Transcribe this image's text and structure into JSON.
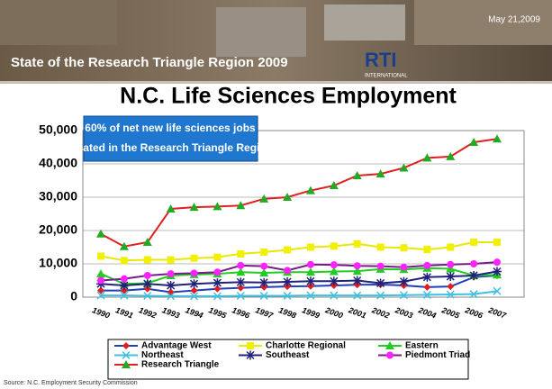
{
  "header": {
    "subtitle": "State of the Research Triangle Region 2009",
    "date": "May 21,2009",
    "logo": "RTI",
    "logo_sub": "INTERNATIONAL"
  },
  "source": "Source: N.C. Employment Security Commission",
  "chart_data": {
    "type": "line",
    "title": "N.C. Life Sciences Employment",
    "annotation": [
      "60% of net new life sciences jobs",
      "located in the Research Triangle Region"
    ],
    "categories": [
      "1990",
      "1991",
      "1992",
      "1993",
      "1994",
      "1995",
      "1996",
      "1997",
      "1998",
      "1999",
      "2000",
      "2001",
      "2002",
      "2003",
      "2004",
      "2005",
      "2006",
      "2007"
    ],
    "ylim": [
      0,
      50000
    ],
    "yticks": [
      0,
      {
        "value": 10000,
        "label": "10,000"
      },
      {
        "value": 20000,
        "label": "20,000"
      },
      {
        "value": 30000,
        "label": "30,000"
      },
      {
        "value": 40000,
        "label": "40,000"
      },
      {
        "value": 50000,
        "label": "50,000"
      }
    ],
    "grid": true,
    "series": [
      {
        "name": "Advantage West",
        "color": "#1f3fbf",
        "marker": "diamond",
        "marker_color": "#e02020",
        "values": [
          2000,
          2000,
          2500,
          1500,
          2000,
          2500,
          2800,
          3000,
          3200,
          3300,
          3500,
          3700,
          3800,
          3500,
          3000,
          3200,
          6000,
          6500
        ]
      },
      {
        "name": "Charlotte Regional",
        "color": "#e8e800",
        "marker": "square",
        "marker_color": "#f0f000",
        "values": [
          12300,
          11000,
          11200,
          11200,
          11700,
          12000,
          13000,
          13500,
          14200,
          15000,
          15300,
          16000,
          15000,
          14800,
          14300,
          15000,
          16500,
          16500
        ]
      },
      {
        "name": "Eastern",
        "color": "#22cc22",
        "marker": "triangle",
        "marker_color": "#22cc22",
        "values": [
          7000,
          4000,
          4200,
          6500,
          6800,
          7000,
          7500,
          7300,
          7500,
          7500,
          7700,
          7800,
          8400,
          8300,
          8700,
          8500,
          6500,
          6700
        ]
      },
      {
        "name": "Northeast",
        "color": "#40c0e0",
        "marker": "cross",
        "marker_color": "#40c0e0",
        "values": [
          500,
          500,
          400,
          300,
          300,
          300,
          400,
          400,
          400,
          500,
          500,
          500,
          500,
          600,
          700,
          800,
          900,
          1800
        ]
      },
      {
        "name": "Southeast",
        "color": "#22227a",
        "marker": "star",
        "marker_color": "#22227a",
        "values": [
          4000,
          3500,
          4000,
          3500,
          4000,
          4300,
          4500,
          4400,
          4600,
          4800,
          4800,
          5000,
          4200,
          4700,
          6000,
          6200,
          6500,
          7700
        ]
      },
      {
        "name": "Piedmont Triad",
        "color": "#7a1a8a",
        "marker": "circle",
        "marker_color": "#ff22ff",
        "values": [
          5000,
          5500,
          6500,
          7000,
          7200,
          7500,
          9500,
          9300,
          8000,
          9800,
          9700,
          9400,
          9300,
          9000,
          9500,
          9800,
          10000,
          10500
        ]
      },
      {
        "name": "Research Triangle",
        "color": "#e02020",
        "marker": "triangle",
        "marker_color": "#22aa22",
        "values": [
          19000,
          15200,
          16500,
          26500,
          27000,
          27200,
          27500,
          29500,
          30000,
          32000,
          33500,
          36500,
          37000,
          38800,
          41800,
          42200,
          46500,
          47500
        ]
      }
    ]
  }
}
